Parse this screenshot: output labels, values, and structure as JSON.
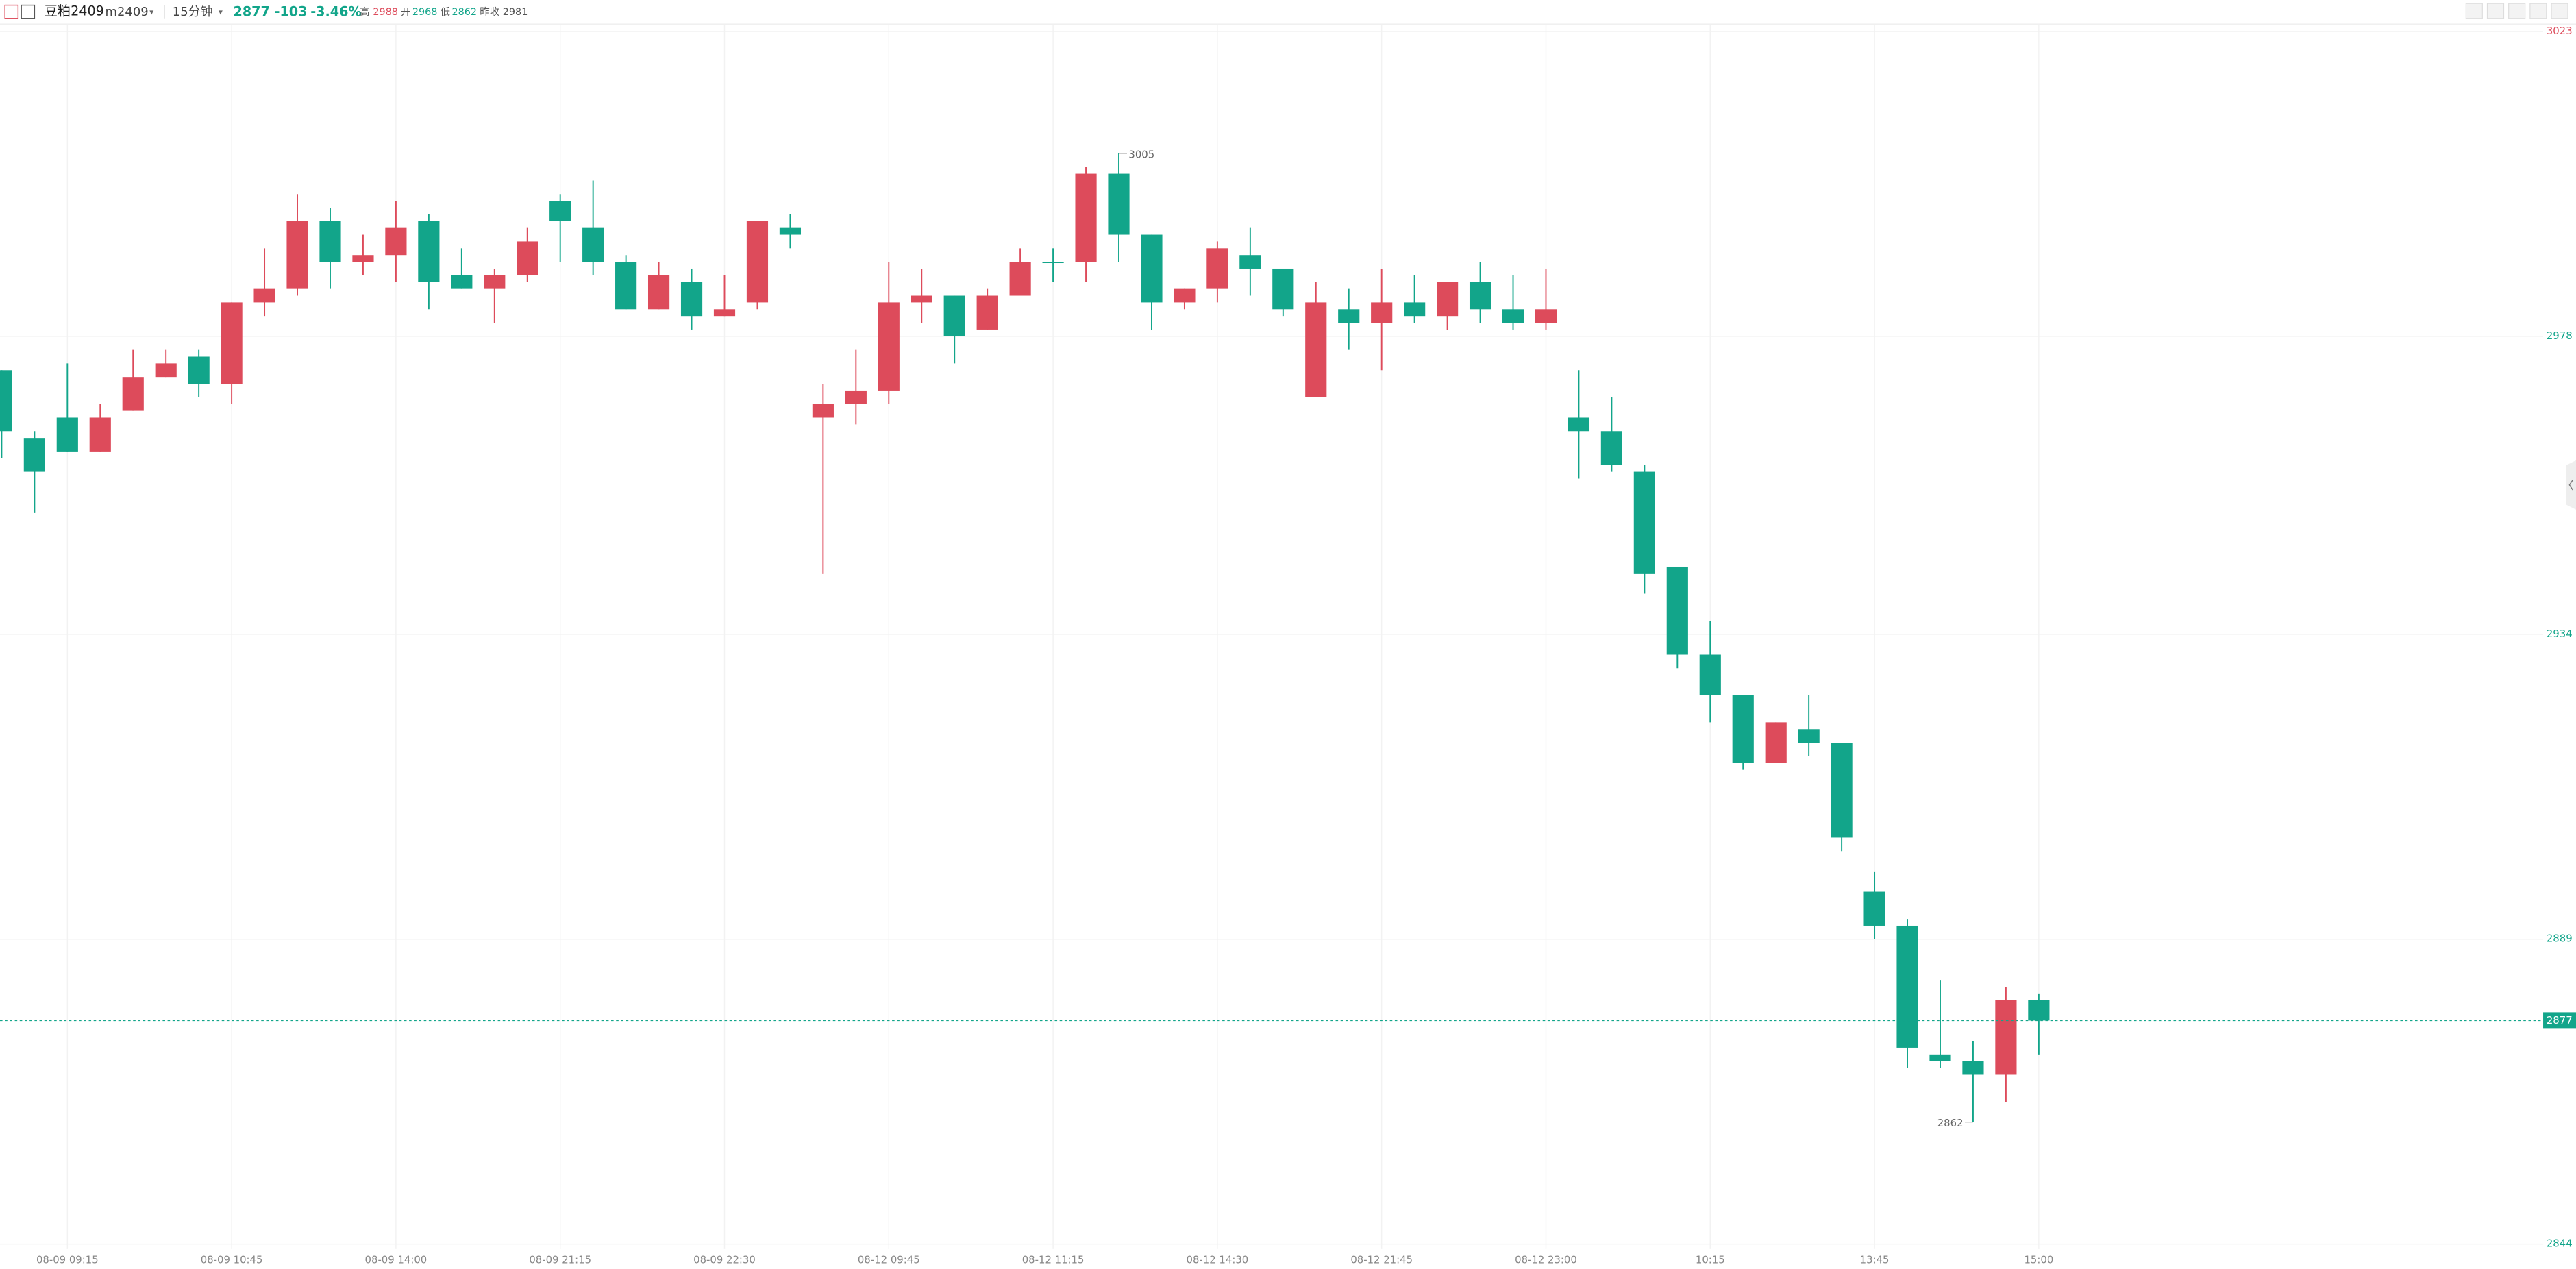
{
  "header": {
    "symbol": "豆粕2409",
    "code": "m2409",
    "period": "15分钟",
    "last": "2877",
    "change": "-103",
    "change_pct": "-3.46%",
    "high_label": "高",
    "high": "2988",
    "open_label": "开",
    "open": "2968",
    "low_label": "低",
    "low": "2862",
    "prev_label": "昨收",
    "prev": "2981"
  },
  "chart_data": {
    "type": "candlestick",
    "categories": [
      null,
      null,
      "08-09 09:15",
      null,
      null,
      null,
      null,
      "08-09 10:45",
      null,
      null,
      null,
      null,
      "08-09 14:00",
      null,
      null,
      null,
      null,
      "08-09 21:15",
      null,
      null,
      null,
      null,
      "08-09 22:30",
      null,
      null,
      null,
      null,
      "08-12 09:45",
      null,
      null,
      null,
      null,
      "08-12 11:15",
      null,
      null,
      null,
      null,
      "08-12 14:30",
      null,
      null,
      null,
      null,
      "08-12 21:45",
      null,
      null,
      null,
      null,
      "08-12 23:00",
      null,
      null,
      null,
      null,
      "10:15",
      null,
      null,
      null,
      null,
      "13:45",
      null,
      null,
      null,
      null,
      "15:00"
    ],
    "open": [
      2973,
      2963,
      2966,
      2961,
      2967,
      2972,
      2975,
      2971,
      2983,
      2985,
      2995,
      2989,
      2990,
      2995,
      2987,
      2985,
      2987,
      2998,
      2994,
      2989,
      2982,
      2986,
      2981,
      2983,
      2994,
      2966,
      2968,
      2970,
      2983,
      2984,
      2979,
      2984,
      2989,
      2989,
      3002,
      2993,
      2983,
      2985,
      2990,
      2988,
      2969,
      2982,
      2980,
      2983,
      2981,
      2986,
      2982,
      2980,
      2966,
      2964,
      2958,
      2944,
      2931,
      2925,
      2915,
      2920,
      2918,
      2896,
      2891,
      2872,
      2871,
      2869,
      2880
    ],
    "high": [
      2973,
      2964,
      2974,
      2968,
      2976,
      2976,
      2976,
      2983,
      2991,
      2999,
      2997,
      2993,
      2998,
      2996,
      2991,
      2988,
      2994,
      2999,
      3001,
      2990,
      2989,
      2988,
      2987,
      2995,
      2996,
      2971,
      2976,
      2989,
      2988,
      2984,
      2985,
      2991,
      2991,
      3003,
      3005,
      2993,
      2985,
      2992,
      2994,
      2988,
      2986,
      2985,
      2988,
      2987,
      2986,
      2989,
      2987,
      2988,
      2973,
      2969,
      2959,
      2944,
      2936,
      2925,
      2921,
      2925,
      2918,
      2899,
      2892,
      2883,
      2874,
      2882,
      2881
    ],
    "low": [
      2960,
      2952,
      2961,
      2961,
      2967,
      2972,
      2969,
      2968,
      2981,
      2984,
      2985,
      2987,
      2986,
      2982,
      2985,
      2980,
      2986,
      2989,
      2987,
      2982,
      2982,
      2979,
      2981,
      2982,
      2991,
      2943,
      2965,
      2968,
      2980,
      2974,
      2979,
      2984,
      2986,
      2986,
      2989,
      2979,
      2982,
      2983,
      2984,
      2981,
      2969,
      2976,
      2973,
      2980,
      2979,
      2980,
      2979,
      2979,
      2957,
      2958,
      2940,
      2929,
      2921,
      2914,
      2915,
      2916,
      2902,
      2889,
      2870,
      2870,
      2862,
      2865,
      2872
    ],
    "close": [
      2964,
      2958,
      2961,
      2966,
      2972,
      2974,
      2971,
      2983,
      2985,
      2995,
      2989,
      2990,
      2994,
      2986,
      2985,
      2987,
      2992,
      2995,
      2989,
      2982,
      2987,
      2981,
      2982,
      2995,
      2993,
      2968,
      2970,
      2983,
      2984,
      2978,
      2984,
      2989,
      2989,
      3002,
      2993,
      2983,
      2985,
      2991,
      2988,
      2982,
      2983,
      2980,
      2983,
      2981,
      2986,
      2982,
      2980,
      2982,
      2964,
      2959,
      2943,
      2931,
      2925,
      2915,
      2921,
      2918,
      2904,
      2891,
      2873,
      2871,
      2869,
      2880,
      2877
    ],
    "ylim": [
      2844,
      3023
    ],
    "yticks": [
      3023,
      2978,
      2934,
      2889,
      2844
    ],
    "up_color": "#dd4b5b",
    "down_color": "#12a58a",
    "grid": true,
    "last_price": 2877,
    "high_marker": 3005,
    "low_marker": 2862
  }
}
